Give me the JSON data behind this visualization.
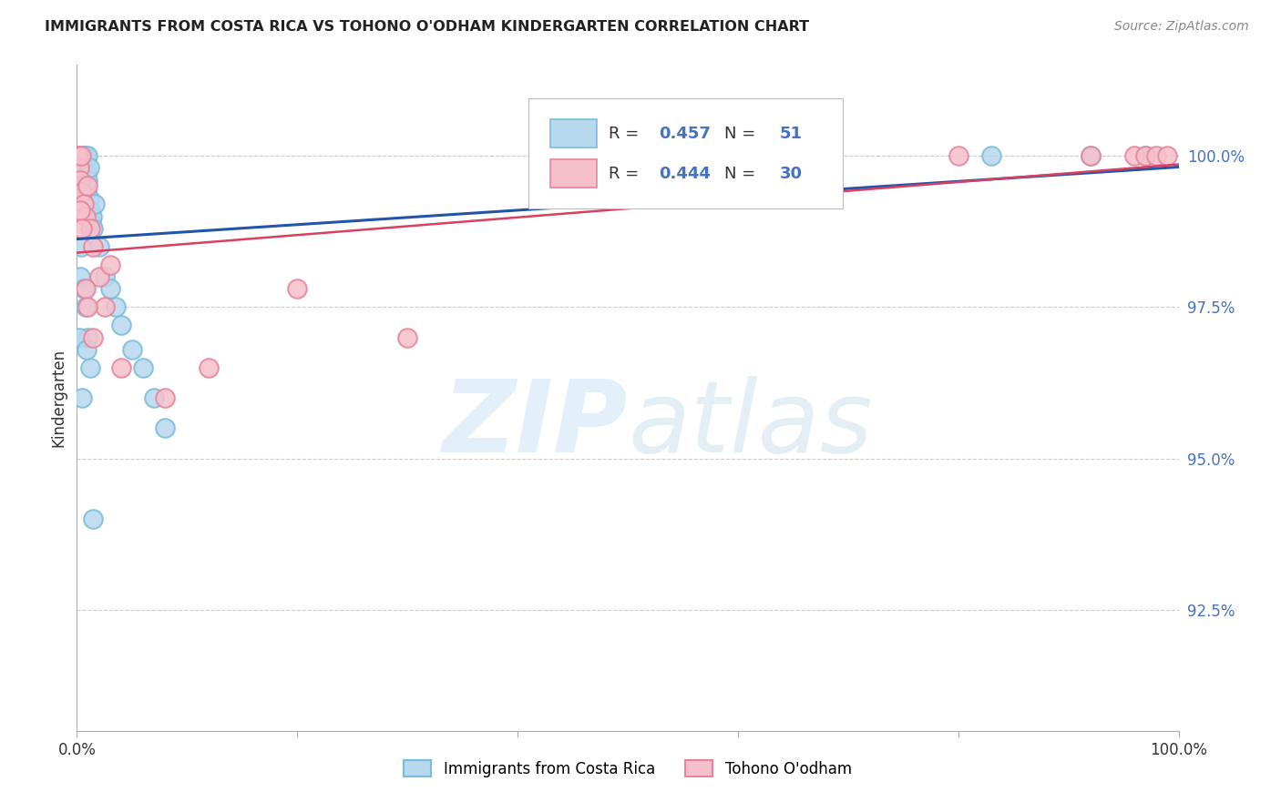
{
  "title": "IMMIGRANTS FROM COSTA RICA VS TOHONO O'ODHAM KINDERGARTEN CORRELATION CHART",
  "source": "Source: ZipAtlas.com",
  "ylabel": "Kindergarten",
  "ytick_labels": [
    "92.5%",
    "95.0%",
    "97.5%",
    "100.0%"
  ],
  "ytick_values": [
    92.5,
    95.0,
    97.5,
    100.0
  ],
  "xmin": 0.0,
  "xmax": 100.0,
  "ymin": 90.5,
  "ymax": 101.5,
  "blue_R": 0.457,
  "blue_N": 51,
  "pink_R": 0.444,
  "pink_N": 30,
  "blue_color": "#7abcdc",
  "blue_face_color": "#b8d8ee",
  "pink_color": "#e8849a",
  "pink_face_color": "#f5c0cb",
  "blue_line_color": "#2255aa",
  "pink_line_color": "#d94060",
  "r_value_color": "#4472c4",
  "n_value_color": "#4472c4",
  "legend_blue_label": "Immigrants from Costa Rica",
  "legend_pink_label": "Tohono O'odham",
  "blue_x": [
    0.0,
    0.1,
    0.2,
    0.2,
    0.3,
    0.3,
    0.3,
    0.4,
    0.4,
    0.5,
    0.5,
    0.5,
    0.6,
    0.6,
    0.7,
    0.7,
    0.8,
    0.8,
    0.9,
    0.9,
    1.0,
    1.0,
    1.1,
    1.1,
    1.2,
    1.3,
    1.4,
    1.5,
    1.6,
    2.0,
    2.5,
    3.0,
    3.5,
    4.0,
    5.0,
    6.0,
    7.0,
    8.0,
    1.0,
    1.2,
    0.8,
    0.5,
    0.3,
    0.2,
    0.4,
    0.6,
    0.9,
    1.5,
    83.0,
    92.0,
    97.0
  ],
  "blue_y": [
    100.0,
    100.0,
    100.0,
    99.9,
    100.0,
    99.8,
    100.0,
    100.0,
    99.7,
    100.0,
    99.9,
    100.0,
    100.0,
    99.6,
    100.0,
    99.5,
    99.8,
    100.0,
    99.7,
    99.4,
    99.6,
    100.0,
    99.3,
    99.8,
    99.1,
    98.9,
    99.0,
    98.8,
    99.2,
    98.5,
    98.0,
    97.8,
    97.5,
    97.2,
    96.8,
    96.5,
    96.0,
    95.5,
    97.0,
    96.5,
    97.5,
    96.0,
    98.0,
    97.0,
    98.5,
    97.8,
    96.8,
    94.0,
    100.0,
    100.0,
    100.0
  ],
  "pink_x": [
    0.0,
    0.1,
    0.2,
    0.3,
    0.4,
    0.5,
    0.6,
    0.8,
    1.0,
    1.2,
    1.5,
    2.0,
    2.5,
    3.0,
    0.3,
    0.5,
    0.8,
    1.0,
    1.5,
    4.0,
    8.0,
    12.0,
    20.0,
    30.0,
    80.0,
    92.0,
    96.0,
    97.0,
    98.0,
    99.0
  ],
  "pink_y": [
    100.0,
    100.0,
    99.8,
    99.6,
    100.0,
    99.4,
    99.2,
    99.0,
    99.5,
    98.8,
    98.5,
    98.0,
    97.5,
    98.2,
    99.1,
    98.8,
    97.8,
    97.5,
    97.0,
    96.5,
    96.0,
    96.5,
    97.8,
    97.0,
    100.0,
    100.0,
    100.0,
    100.0,
    100.0,
    100.0
  ]
}
